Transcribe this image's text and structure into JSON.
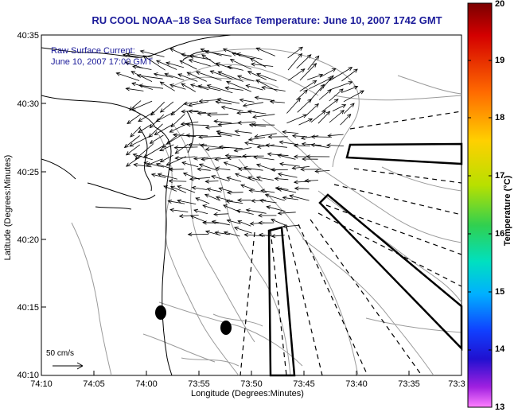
{
  "title": "RU COOL   NOAA–18  Sea Surface Temperature:  June 10, 2007 1742 GMT",
  "legend": {
    "line1": "Raw Surface Current:",
    "line2": "June 10, 2007 17:00 GMT",
    "scale": "50 cm/s"
  },
  "x_axis": {
    "label": "Longitude (Degrees:Minutes)",
    "ticks": [
      "74:10",
      "74:05",
      "74:00",
      "73:55",
      "73:50",
      "73:45",
      "73:40",
      "73:35",
      "73:3"
    ]
  },
  "y_axis": {
    "label": "Latitude (Degrees:Minutes)",
    "ticks": [
      "40:35",
      "40:30",
      "40:25",
      "40:20",
      "40:15",
      "40:10"
    ]
  },
  "colorbar": {
    "label": "Temperature (°C)",
    "ticks": [
      "20",
      "19",
      "18",
      "17",
      "16",
      "15",
      "14",
      "13"
    ],
    "colors": [
      "#7a0000",
      "#d40000",
      "#ff6a00",
      "#ffd000",
      "#b8e000",
      "#30d050",
      "#00e0c0",
      "#00b0ff",
      "#1040ff",
      "#2010d0",
      "#a020e0",
      "#ff80ff"
    ]
  },
  "map_colors": {
    "land": "#ffffff",
    "bathymetry": "#9a9a9a",
    "coast": "#000000"
  }
}
